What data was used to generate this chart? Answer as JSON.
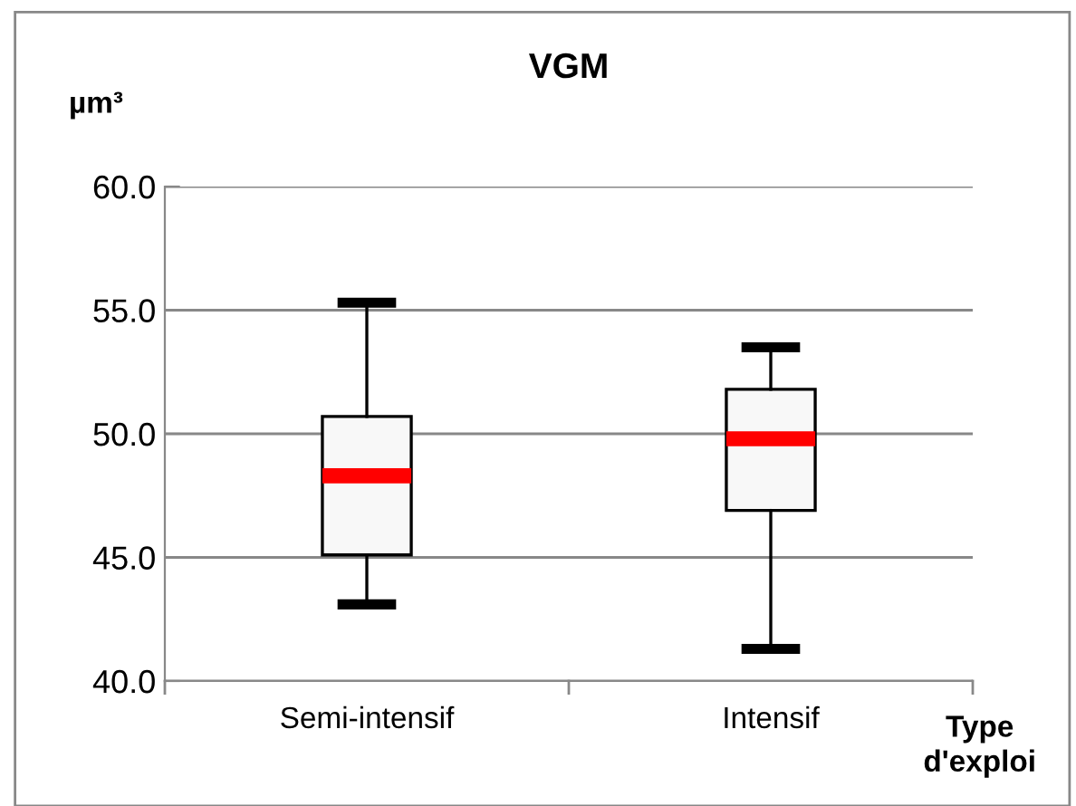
{
  "chart_data": {
    "type": "box",
    "title": "VGM",
    "ylabel": "µm³",
    "xlabel": "Type\nd'exploi",
    "categories": [
      "Semi-intensif",
      "Intensif"
    ],
    "boxes": [
      {
        "low": 43.1,
        "q1": 45.1,
        "median": 48.3,
        "q3": 50.7,
        "high": 55.3
      },
      {
        "low": 41.3,
        "q1": 46.9,
        "median": 49.8,
        "q3": 51.8,
        "high": 53.5
      }
    ],
    "color": "#f8f8f8",
    "ylim": [
      40,
      60
    ],
    "yticks": [
      {
        "value": 40,
        "label": "40.0"
      },
      {
        "value": 45,
        "label": "45.0"
      },
      {
        "value": 50,
        "label": "50.0"
      },
      {
        "value": 55,
        "label": "55.0"
      },
      {
        "value": 60,
        "label": "60.0"
      }
    ],
    "grid": "y",
    "legend": false
  }
}
